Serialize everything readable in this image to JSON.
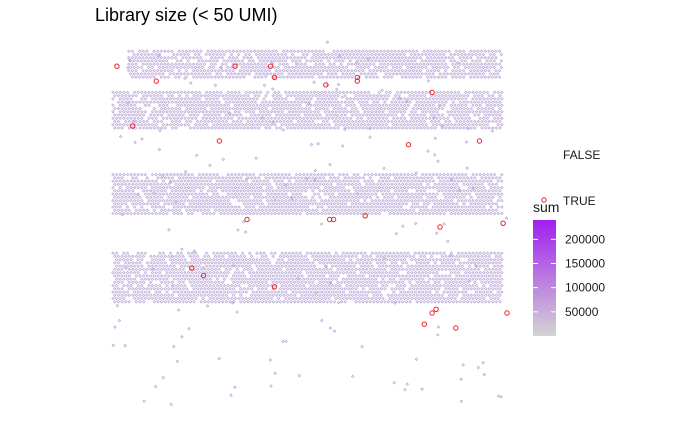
{
  "chart_data": {
    "type": "scatter",
    "title": "Library size (< 50 UMI)",
    "xlabel": "",
    "ylabel": "",
    "grid": false,
    "axes_visible": false,
    "spot_shape": "open-diamond",
    "rows": [
      {
        "x_range": [
          0.04,
          0.99
        ],
        "y_range": [
          0.03,
          0.1
        ],
        "sum_level": 0.35
      },
      {
        "x_range": [
          0.0,
          0.99
        ],
        "y_range": [
          0.14,
          0.24
        ],
        "sum_level": 0.35
      },
      {
        "x_range": [
          0.0,
          0.99
        ],
        "y_range": [
          0.36,
          0.47
        ],
        "sum_level": 0.35
      },
      {
        "x_range": [
          0.0,
          0.99
        ],
        "y_range": [
          0.57,
          0.7
        ],
        "sum_level": 0.35
      }
    ],
    "flagged_points": [
      {
        "x": 0.01,
        "y": 0.07
      },
      {
        "x": 0.11,
        "y": 0.11
      },
      {
        "x": 0.31,
        "y": 0.07
      },
      {
        "x": 0.4,
        "y": 0.07
      },
      {
        "x": 0.41,
        "y": 0.1
      },
      {
        "x": 0.54,
        "y": 0.12
      },
      {
        "x": 0.62,
        "y": 0.1
      },
      {
        "x": 0.62,
        "y": 0.11
      },
      {
        "x": 0.81,
        "y": 0.14
      },
      {
        "x": 0.05,
        "y": 0.23
      },
      {
        "x": 0.27,
        "y": 0.27
      },
      {
        "x": 0.75,
        "y": 0.28
      },
      {
        "x": 0.93,
        "y": 0.27
      },
      {
        "x": 0.34,
        "y": 0.48
      },
      {
        "x": 0.55,
        "y": 0.48
      },
      {
        "x": 0.56,
        "y": 0.48
      },
      {
        "x": 0.64,
        "y": 0.47
      },
      {
        "x": 0.83,
        "y": 0.5
      },
      {
        "x": 0.99,
        "y": 0.49
      },
      {
        "x": 0.2,
        "y": 0.61
      },
      {
        "x": 0.23,
        "y": 0.63
      },
      {
        "x": 0.41,
        "y": 0.66
      },
      {
        "x": 0.81,
        "y": 0.73
      },
      {
        "x": 0.82,
        "y": 0.72
      },
      {
        "x": 0.79,
        "y": 0.76
      },
      {
        "x": 0.87,
        "y": 0.77
      },
      {
        "x": 1.0,
        "y": 0.73
      }
    ],
    "legend": {
      "flag": {
        "items": [
          {
            "label": "FALSE",
            "color": "#ffffff",
            "stroke": "none"
          },
          {
            "label": "TRUE",
            "color": "#ffffff",
            "stroke": "#e8242b"
          }
        ]
      },
      "sum": {
        "title": "sum",
        "ticks": [
          50000,
          100000,
          150000,
          200000
        ],
        "tick_labels": [
          "50000",
          "100000",
          "150000",
          "200000"
        ],
        "range": [
          0,
          240000
        ],
        "color_low": "#d3d3d3",
        "color_high": "#a020f0"
      }
    },
    "colors": {
      "spot": "#b9a6d6",
      "flag_stroke": "#e8242b",
      "background": "#ffffff"
    }
  }
}
